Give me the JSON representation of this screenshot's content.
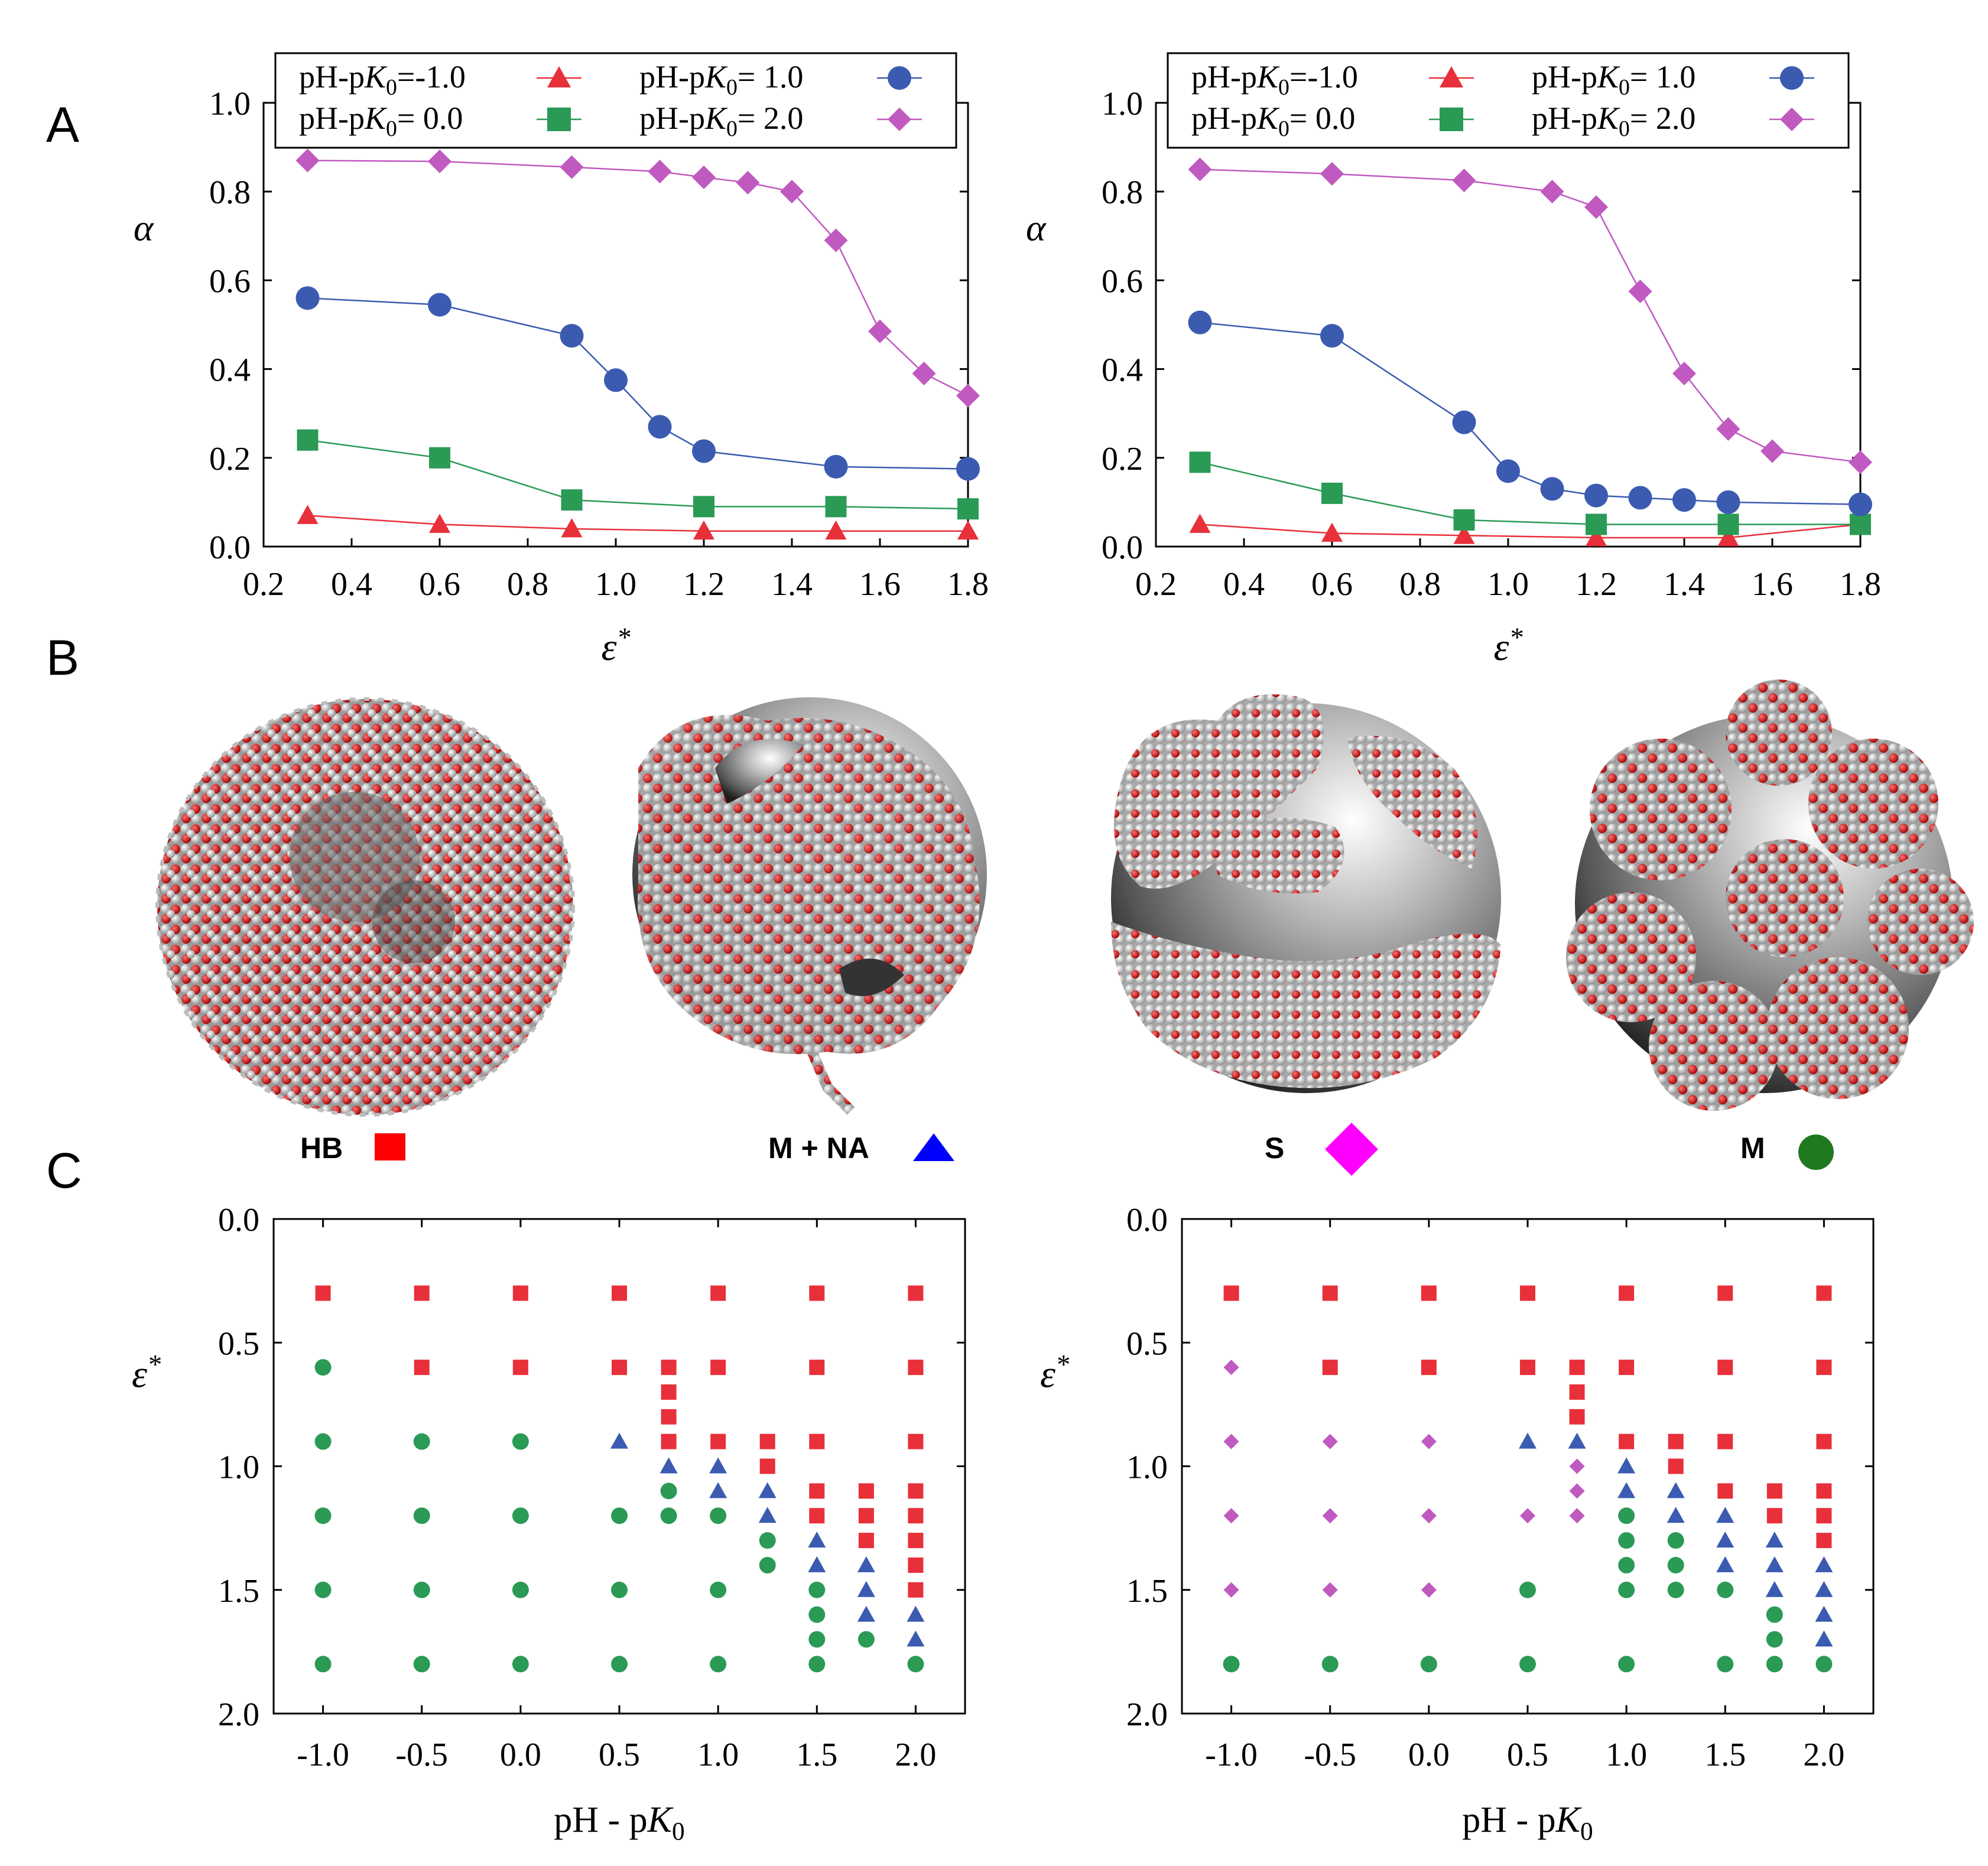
{
  "panel_letters": {
    "a": "A",
    "b": "B",
    "c": "C"
  },
  "colors": {
    "red": "#e8303a",
    "green": "#2a9a55",
    "blue": "#3a5bb0",
    "magenta": "#c05ac0",
    "magenta_legend": "#ff00ff",
    "blue_legend": "#0000ff",
    "green_legend": "#1f7a1f",
    "legend_red": "#ff0000"
  },
  "chart_data": [
    {
      "id": "alpha-left",
      "type": "line",
      "xlabel": "ε*",
      "ylabel": "α",
      "xlim": [
        0.2,
        1.8
      ],
      "ylim": [
        0,
        1.0
      ],
      "xticks": [
        "0.2",
        "0.4",
        "0.6",
        "0.8",
        "1.0",
        "1.2",
        "1.4",
        "1.6",
        "1.8"
      ],
      "yticks": [
        "0.0",
        "0.2",
        "0.4",
        "0.6",
        "0.8",
        "1.0"
      ],
      "legend": {
        "placement": "top",
        "columns": 2
      },
      "series": [
        {
          "name": "pH-pK0=-1.0",
          "label_pre": "pH-p",
          "label_k": "K",
          "label_sub": "0",
          "label_post": "=-1.0",
          "marker": "triangle",
          "color": "#e8303a",
          "x": [
            0.3,
            0.6,
            0.9,
            1.2,
            1.5,
            1.8
          ],
          "y": [
            0.07,
            0.05,
            0.04,
            0.035,
            0.035,
            0.035
          ]
        },
        {
          "name": "pH-pK0= 0.0",
          "label_pre": "pH-p",
          "label_k": "K",
          "label_sub": "0",
          "label_post": "= 0.0",
          "marker": "square",
          "color": "#2a9a55",
          "x": [
            0.3,
            0.6,
            0.9,
            1.2,
            1.5,
            1.8
          ],
          "y": [
            0.24,
            0.2,
            0.105,
            0.09,
            0.09,
            0.085
          ]
        },
        {
          "name": "pH-pK0= 1.0",
          "label_pre": "pH-p",
          "label_k": "K",
          "label_sub": "0",
          "label_post": "= 1.0",
          "marker": "circle",
          "color": "#3a5bb0",
          "x": [
            0.3,
            0.6,
            0.9,
            1.0,
            1.1,
            1.2,
            1.5,
            1.8
          ],
          "y": [
            0.56,
            0.545,
            0.475,
            0.375,
            0.27,
            0.215,
            0.18,
            0.175
          ]
        },
        {
          "name": "pH-pK0= 2.0",
          "label_pre": "pH-p",
          "label_k": "K",
          "label_sub": "0",
          "label_post": "= 2.0",
          "marker": "diamond",
          "color": "#c05ac0",
          "x": [
            0.3,
            0.6,
            0.9,
            1.1,
            1.2,
            1.3,
            1.4,
            1.5,
            1.6,
            1.7,
            1.8
          ],
          "y": [
            0.87,
            0.868,
            0.855,
            0.845,
            0.832,
            0.82,
            0.8,
            0.69,
            0.485,
            0.39,
            0.34
          ]
        }
      ]
    },
    {
      "id": "alpha-right",
      "type": "line",
      "xlabel": "ε*",
      "ylabel": "α",
      "xlim": [
        0.2,
        1.8
      ],
      "ylim": [
        0,
        1.0
      ],
      "xticks": [
        "0.2",
        "0.4",
        "0.6",
        "0.8",
        "1.0",
        "1.2",
        "1.4",
        "1.6",
        "1.8"
      ],
      "yticks": [
        "0.0",
        "0.2",
        "0.4",
        "0.6",
        "0.8",
        "1.0"
      ],
      "legend": {
        "placement": "top",
        "columns": 2
      },
      "series": [
        {
          "name": "pH-pK0=-1.0",
          "label_pre": "pH-p",
          "label_k": "K",
          "label_sub": "0",
          "label_post": "=-1.0",
          "marker": "triangle",
          "color": "#e8303a",
          "x": [
            0.3,
            0.6,
            0.9,
            1.2,
            1.5,
            1.8
          ],
          "y": [
            0.05,
            0.03,
            0.025,
            0.02,
            0.02,
            0.05
          ]
        },
        {
          "name": "pH-pK0= 0.0",
          "label_pre": "pH-p",
          "label_k": "K",
          "label_sub": "0",
          "label_post": "= 0.0",
          "marker": "square",
          "color": "#2a9a55",
          "x": [
            0.3,
            0.6,
            0.9,
            1.2,
            1.5,
            1.8
          ],
          "y": [
            0.19,
            0.12,
            0.06,
            0.05,
            0.05,
            0.05
          ]
        },
        {
          "name": "pH-pK0= 1.0",
          "label_pre": "pH-p",
          "label_k": "K",
          "label_sub": "0",
          "label_post": "= 1.0",
          "marker": "circle",
          "color": "#3a5bb0",
          "x": [
            0.3,
            0.6,
            0.9,
            1.0,
            1.1,
            1.2,
            1.3,
            1.4,
            1.5,
            1.8
          ],
          "y": [
            0.505,
            0.475,
            0.28,
            0.17,
            0.13,
            0.115,
            0.11,
            0.105,
            0.1,
            0.095
          ]
        },
        {
          "name": "pH-pK0= 2.0",
          "label_pre": "pH-p",
          "label_k": "K",
          "label_sub": "0",
          "label_post": "= 2.0",
          "marker": "diamond",
          "color": "#c05ac0",
          "x": [
            0.3,
            0.6,
            0.9,
            1.1,
            1.2,
            1.3,
            1.4,
            1.5,
            1.6,
            1.8
          ],
          "y": [
            0.85,
            0.84,
            0.825,
            0.8,
            0.765,
            0.575,
            0.39,
            0.265,
            0.215,
            0.19
          ]
        }
      ]
    },
    {
      "id": "phase-left",
      "type": "scatter",
      "xlabel_pre": "pH - p",
      "xlabel_k": "K",
      "xlabel_sub": "0",
      "ylabel": "ε*",
      "xlim": [
        -1.25,
        2.25
      ],
      "ylim": [
        2.0,
        0.0
      ],
      "xticks": [
        "-1.0",
        "-0.5",
        "0.0",
        "0.5",
        "1.0",
        "1.5",
        "2.0"
      ],
      "yticks": [
        "0.0",
        "0.5",
        "1.0",
        "1.5",
        "2.0"
      ],
      "points": [
        {
          "x": -1.0,
          "y": 0.3,
          "c": "HB"
        },
        {
          "x": -0.5,
          "y": 0.3,
          "c": "HB"
        },
        {
          "x": 0.0,
          "y": 0.3,
          "c": "HB"
        },
        {
          "x": 0.5,
          "y": 0.3,
          "c": "HB"
        },
        {
          "x": 1.0,
          "y": 0.3,
          "c": "HB"
        },
        {
          "x": 1.5,
          "y": 0.3,
          "c": "HB"
        },
        {
          "x": 2.0,
          "y": 0.3,
          "c": "HB"
        },
        {
          "x": -1.0,
          "y": 0.6,
          "c": "M"
        },
        {
          "x": -0.5,
          "y": 0.6,
          "c": "HB"
        },
        {
          "x": 0.0,
          "y": 0.6,
          "c": "HB"
        },
        {
          "x": 0.5,
          "y": 0.6,
          "c": "HB"
        },
        {
          "x": 0.75,
          "y": 0.6,
          "c": "HB"
        },
        {
          "x": 1.0,
          "y": 0.6,
          "c": "HB"
        },
        {
          "x": 1.5,
          "y": 0.6,
          "c": "HB"
        },
        {
          "x": 2.0,
          "y": 0.6,
          "c": "HB"
        },
        {
          "x": 0.75,
          "y": 0.7,
          "c": "HB"
        },
        {
          "x": 0.75,
          "y": 0.8,
          "c": "HB"
        },
        {
          "x": -1.0,
          "y": 0.9,
          "c": "M"
        },
        {
          "x": -0.5,
          "y": 0.9,
          "c": "M"
        },
        {
          "x": 0.0,
          "y": 0.9,
          "c": "M"
        },
        {
          "x": 0.5,
          "y": 0.9,
          "c": "MNA"
        },
        {
          "x": 0.75,
          "y": 0.9,
          "c": "HB"
        },
        {
          "x": 1.0,
          "y": 0.9,
          "c": "HB"
        },
        {
          "x": 1.25,
          "y": 0.9,
          "c": "HB"
        },
        {
          "x": 1.5,
          "y": 0.9,
          "c": "HB"
        },
        {
          "x": 2.0,
          "y": 0.9,
          "c": "HB"
        },
        {
          "x": 0.75,
          "y": 1.0,
          "c": "MNA"
        },
        {
          "x": 1.0,
          "y": 1.0,
          "c": "MNA"
        },
        {
          "x": 1.25,
          "y": 1.0,
          "c": "HB"
        },
        {
          "x": 0.75,
          "y": 1.1,
          "c": "M"
        },
        {
          "x": 1.0,
          "y": 1.1,
          "c": "MNA"
        },
        {
          "x": 1.25,
          "y": 1.1,
          "c": "MNA"
        },
        {
          "x": 1.5,
          "y": 1.1,
          "c": "HB"
        },
        {
          "x": 1.75,
          "y": 1.1,
          "c": "HB"
        },
        {
          "x": 2.0,
          "y": 1.1,
          "c": "HB"
        },
        {
          "x": -1.0,
          "y": 1.2,
          "c": "M"
        },
        {
          "x": -0.5,
          "y": 1.2,
          "c": "M"
        },
        {
          "x": 0.0,
          "y": 1.2,
          "c": "M"
        },
        {
          "x": 0.5,
          "y": 1.2,
          "c": "M"
        },
        {
          "x": 0.75,
          "y": 1.2,
          "c": "M"
        },
        {
          "x": 1.0,
          "y": 1.2,
          "c": "M"
        },
        {
          "x": 1.25,
          "y": 1.2,
          "c": "MNA"
        },
        {
          "x": 1.5,
          "y": 1.2,
          "c": "HB"
        },
        {
          "x": 1.75,
          "y": 1.2,
          "c": "HB"
        },
        {
          "x": 2.0,
          "y": 1.2,
          "c": "HB"
        },
        {
          "x": 1.25,
          "y": 1.3,
          "c": "M"
        },
        {
          "x": 1.5,
          "y": 1.3,
          "c": "MNA"
        },
        {
          "x": 1.75,
          "y": 1.3,
          "c": "HB"
        },
        {
          "x": 2.0,
          "y": 1.3,
          "c": "HB"
        },
        {
          "x": 1.25,
          "y": 1.4,
          "c": "M"
        },
        {
          "x": 1.5,
          "y": 1.4,
          "c": "MNA"
        },
        {
          "x": 1.75,
          "y": 1.4,
          "c": "MNA"
        },
        {
          "x": 2.0,
          "y": 1.4,
          "c": "HB"
        },
        {
          "x": -1.0,
          "y": 1.5,
          "c": "M"
        },
        {
          "x": -0.5,
          "y": 1.5,
          "c": "M"
        },
        {
          "x": 0.0,
          "y": 1.5,
          "c": "M"
        },
        {
          "x": 0.5,
          "y": 1.5,
          "c": "M"
        },
        {
          "x": 1.0,
          "y": 1.5,
          "c": "M"
        },
        {
          "x": 1.5,
          "y": 1.5,
          "c": "M"
        },
        {
          "x": 1.75,
          "y": 1.5,
          "c": "MNA"
        },
        {
          "x": 2.0,
          "y": 1.5,
          "c": "HB"
        },
        {
          "x": 1.5,
          "y": 1.6,
          "c": "M"
        },
        {
          "x": 1.75,
          "y": 1.6,
          "c": "MNA"
        },
        {
          "x": 2.0,
          "y": 1.6,
          "c": "MNA"
        },
        {
          "x": 1.5,
          "y": 1.7,
          "c": "M"
        },
        {
          "x": 1.75,
          "y": 1.7,
          "c": "M"
        },
        {
          "x": 2.0,
          "y": 1.7,
          "c": "MNA"
        },
        {
          "x": -1.0,
          "y": 1.8,
          "c": "M"
        },
        {
          "x": -0.5,
          "y": 1.8,
          "c": "M"
        },
        {
          "x": 0.0,
          "y": 1.8,
          "c": "M"
        },
        {
          "x": 0.5,
          "y": 1.8,
          "c": "M"
        },
        {
          "x": 1.0,
          "y": 1.8,
          "c": "M"
        },
        {
          "x": 1.5,
          "y": 1.8,
          "c": "M"
        },
        {
          "x": 2.0,
          "y": 1.8,
          "c": "M"
        }
      ]
    },
    {
      "id": "phase-right",
      "type": "scatter",
      "xlabel_pre": "pH - p",
      "xlabel_k": "K",
      "xlabel_sub": "0",
      "ylabel": "ε*",
      "xlim": [
        -1.25,
        2.25
      ],
      "ylim": [
        2.0,
        0.0
      ],
      "xticks": [
        "-1.0",
        "-0.5",
        "0.0",
        "0.5",
        "1.0",
        "1.5",
        "2.0"
      ],
      "yticks": [
        "0.0",
        "0.5",
        "1.0",
        "1.5",
        "2.0"
      ],
      "points": [
        {
          "x": -1.0,
          "y": 0.3,
          "c": "HB"
        },
        {
          "x": -0.5,
          "y": 0.3,
          "c": "HB"
        },
        {
          "x": 0.0,
          "y": 0.3,
          "c": "HB"
        },
        {
          "x": 0.5,
          "y": 0.3,
          "c": "HB"
        },
        {
          "x": 1.0,
          "y": 0.3,
          "c": "HB"
        },
        {
          "x": 1.5,
          "y": 0.3,
          "c": "HB"
        },
        {
          "x": 2.0,
          "y": 0.3,
          "c": "HB"
        },
        {
          "x": -1.0,
          "y": 0.6,
          "c": "S"
        },
        {
          "x": -0.5,
          "y": 0.6,
          "c": "HB"
        },
        {
          "x": 0.0,
          "y": 0.6,
          "c": "HB"
        },
        {
          "x": 0.5,
          "y": 0.6,
          "c": "HB"
        },
        {
          "x": 0.75,
          "y": 0.6,
          "c": "HB"
        },
        {
          "x": 1.0,
          "y": 0.6,
          "c": "HB"
        },
        {
          "x": 1.5,
          "y": 0.6,
          "c": "HB"
        },
        {
          "x": 2.0,
          "y": 0.6,
          "c": "HB"
        },
        {
          "x": 0.75,
          "y": 0.7,
          "c": "HB"
        },
        {
          "x": 0.75,
          "y": 0.8,
          "c": "HB"
        },
        {
          "x": -1.0,
          "y": 0.9,
          "c": "S"
        },
        {
          "x": -0.5,
          "y": 0.9,
          "c": "S"
        },
        {
          "x": 0.0,
          "y": 0.9,
          "c": "S"
        },
        {
          "x": 0.5,
          "y": 0.9,
          "c": "MNA"
        },
        {
          "x": 0.75,
          "y": 0.9,
          "c": "MNA"
        },
        {
          "x": 1.0,
          "y": 0.9,
          "c": "HB"
        },
        {
          "x": 1.25,
          "y": 0.9,
          "c": "HB"
        },
        {
          "x": 1.5,
          "y": 0.9,
          "c": "HB"
        },
        {
          "x": 2.0,
          "y": 0.9,
          "c": "HB"
        },
        {
          "x": 0.75,
          "y": 1.0,
          "c": "S"
        },
        {
          "x": 1.0,
          "y": 1.0,
          "c": "MNA"
        },
        {
          "x": 1.25,
          "y": 1.0,
          "c": "HB"
        },
        {
          "x": 0.75,
          "y": 1.1,
          "c": "S"
        },
        {
          "x": 1.0,
          "y": 1.1,
          "c": "MNA"
        },
        {
          "x": 1.25,
          "y": 1.1,
          "c": "MNA"
        },
        {
          "x": 1.5,
          "y": 1.1,
          "c": "HB"
        },
        {
          "x": 1.75,
          "y": 1.1,
          "c": "HB"
        },
        {
          "x": 2.0,
          "y": 1.1,
          "c": "HB"
        },
        {
          "x": -1.0,
          "y": 1.2,
          "c": "S"
        },
        {
          "x": -0.5,
          "y": 1.2,
          "c": "S"
        },
        {
          "x": 0.0,
          "y": 1.2,
          "c": "S"
        },
        {
          "x": 0.5,
          "y": 1.2,
          "c": "S"
        },
        {
          "x": 0.75,
          "y": 1.2,
          "c": "S"
        },
        {
          "x": 1.0,
          "y": 1.2,
          "c": "M"
        },
        {
          "x": 1.25,
          "y": 1.2,
          "c": "MNA"
        },
        {
          "x": 1.5,
          "y": 1.2,
          "c": "MNA"
        },
        {
          "x": 1.75,
          "y": 1.2,
          "c": "HB"
        },
        {
          "x": 2.0,
          "y": 1.2,
          "c": "HB"
        },
        {
          "x": 1.0,
          "y": 1.3,
          "c": "M"
        },
        {
          "x": 1.25,
          "y": 1.3,
          "c": "M"
        },
        {
          "x": 1.5,
          "y": 1.3,
          "c": "MNA"
        },
        {
          "x": 1.75,
          "y": 1.3,
          "c": "MNA"
        },
        {
          "x": 2.0,
          "y": 1.3,
          "c": "HB"
        },
        {
          "x": 1.0,
          "y": 1.4,
          "c": "M"
        },
        {
          "x": 1.25,
          "y": 1.4,
          "c": "M"
        },
        {
          "x": 1.5,
          "y": 1.4,
          "c": "MNA"
        },
        {
          "x": 1.75,
          "y": 1.4,
          "c": "MNA"
        },
        {
          "x": 2.0,
          "y": 1.4,
          "c": "MNA"
        },
        {
          "x": -1.0,
          "y": 1.5,
          "c": "S"
        },
        {
          "x": -0.5,
          "y": 1.5,
          "c": "S"
        },
        {
          "x": 0.0,
          "y": 1.5,
          "c": "S"
        },
        {
          "x": 0.5,
          "y": 1.5,
          "c": "M"
        },
        {
          "x": 1.0,
          "y": 1.5,
          "c": "M"
        },
        {
          "x": 1.25,
          "y": 1.5,
          "c": "M"
        },
        {
          "x": 1.5,
          "y": 1.5,
          "c": "M"
        },
        {
          "x": 1.75,
          "y": 1.5,
          "c": "MNA"
        },
        {
          "x": 2.0,
          "y": 1.5,
          "c": "MNA"
        },
        {
          "x": 1.75,
          "y": 1.6,
          "c": "M"
        },
        {
          "x": 2.0,
          "y": 1.6,
          "c": "MNA"
        },
        {
          "x": 1.75,
          "y": 1.7,
          "c": "M"
        },
        {
          "x": 2.0,
          "y": 1.7,
          "c": "MNA"
        },
        {
          "x": -1.0,
          "y": 1.8,
          "c": "M"
        },
        {
          "x": -0.5,
          "y": 1.8,
          "c": "M"
        },
        {
          "x": 0.0,
          "y": 1.8,
          "c": "M"
        },
        {
          "x": 0.5,
          "y": 1.8,
          "c": "M"
        },
        {
          "x": 1.0,
          "y": 1.8,
          "c": "M"
        },
        {
          "x": 1.5,
          "y": 1.8,
          "c": "M"
        },
        {
          "x": 1.75,
          "y": 1.8,
          "c": "M"
        },
        {
          "x": 2.0,
          "y": 1.8,
          "c": "M"
        }
      ]
    }
  ],
  "categories": {
    "HB": {
      "label": "HB",
      "marker": "square",
      "color": "#e8303a",
      "legend_color": "#ff0000"
    },
    "MNA": {
      "label": "M + NA",
      "marker": "triangle",
      "color": "#3a5bb0",
      "legend_color": "#0000ff"
    },
    "S": {
      "label": "S",
      "marker": "diamond",
      "color": "#c05ac0",
      "legend_color": "#ff00ff"
    },
    "M": {
      "label": "M",
      "marker": "circle",
      "color": "#2a9a55",
      "legend_color": "#1f7a1f"
    }
  },
  "structures": [
    {
      "name": "HB"
    },
    {
      "name": "M + NA"
    },
    {
      "name": "S"
    },
    {
      "name": "M"
    }
  ]
}
